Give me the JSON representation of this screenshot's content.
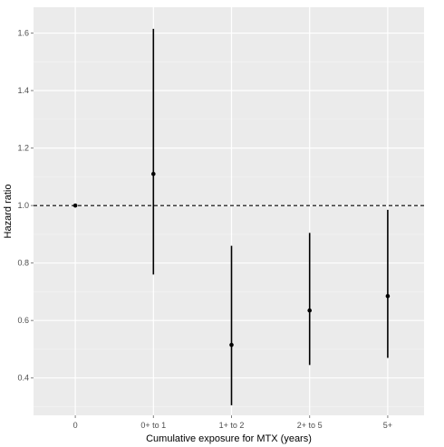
{
  "chart_data": {
    "type": "scatter",
    "title": "",
    "xlabel": "Cumulative exposure for MTX (years)",
    "ylabel": "Hazard ratio",
    "categories": [
      "0",
      "0+ to 1",
      "1+ to 2",
      "2+ to 5",
      "5+"
    ],
    "estimates": [
      1.0,
      1.11,
      0.515,
      0.635,
      0.685
    ],
    "lower": [
      1.0,
      0.76,
      0.305,
      0.445,
      0.47
    ],
    "upper": [
      1.0,
      1.615,
      0.86,
      0.905,
      0.985
    ],
    "ylim": [
      0.27,
      1.69
    ],
    "yticks": [
      0.4,
      0.6,
      0.8,
      1.0,
      1.2,
      1.4,
      1.6
    ],
    "ytick_labels": [
      "0.4",
      "0.6",
      "0.8",
      "1.0",
      "1.2",
      "1.4",
      "1.6"
    ],
    "reference_line": 1.0,
    "grid": true,
    "colors": {
      "panel": "#ebebeb",
      "grid_major": "#ffffff",
      "grid_minor": "#f5f5f5",
      "marks": "#000000",
      "tick_text": "#4d4d4d"
    }
  }
}
